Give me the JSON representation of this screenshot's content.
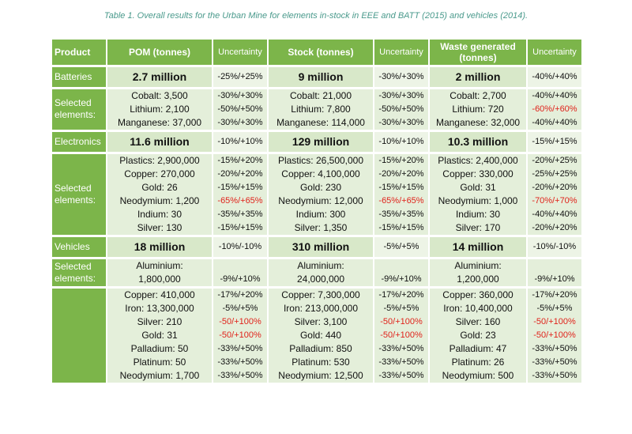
{
  "caption": "Table 1. Overall results for the Urban Mine for elements in-stock in EEE and BATT (2015) and vehicles (2014).",
  "headers": {
    "product": "Product",
    "pom": "POM (tonnes)",
    "uncertainty1": "Uncertainty",
    "stock": "Stock (tonnes)",
    "uncertainty2": "Uncertainty",
    "waste": "Waste generated (tonnes)",
    "uncertainty3": "Uncertainty"
  },
  "sections": [
    {
      "name": "Batteries",
      "pom": "2.7 million",
      "pom_unc": "-25%/+25%",
      "stock": "9 million",
      "stock_unc": "-30%/+30%",
      "waste": "2 million",
      "waste_unc": "-40%/+40%",
      "sel_label": "Selected elements:",
      "pom_items": [
        "Cobalt: 3,500",
        "Lithium: 2,100",
        "Manganese: 37,000"
      ],
      "pom_items_unc": [
        "-30%/+30%",
        "-50%/+50%",
        "-30%/+30%"
      ],
      "stock_items": [
        "Cobalt: 21,000",
        "Lithium: 7,800",
        "Manganese: 114,000"
      ],
      "stock_items_unc": [
        "-30%/+30%",
        "-50%/+50%",
        "-30%/+30%"
      ],
      "waste_items": [
        "Cobalt: 2,700",
        "Lithium: 720",
        "Manganese: 32,000"
      ],
      "waste_items_unc": [
        "-40%/+40%",
        "-60%/+60%",
        "-40%/+40%"
      ]
    },
    {
      "name": "Electronics",
      "pom": "11.6 million",
      "pom_unc": "-10%/+10%",
      "stock": "129 million",
      "stock_unc": "-10%/+10%",
      "waste": "10.3 million",
      "waste_unc": "-15%/+15%",
      "sel_label": "Selected elements:",
      "pom_items": [
        "Plastics: 2,900,000",
        "Copper: 270,000",
        "Gold: 26",
        "Neodymium: 1,200",
        "Indium: 30",
        "Silver: 130"
      ],
      "pom_items_unc": [
        "-15%/+20%",
        "-20%/+20%",
        "-15%/+15%",
        "-65%/+65%",
        "-35%/+35%",
        "-15%/+15%"
      ],
      "stock_items": [
        "Plastics: 26,500,000",
        "Copper: 4,100,000",
        "Gold: 230",
        "Neodymium: 12,000",
        "Indium: 300",
        "Silver: 1,350"
      ],
      "stock_items_unc": [
        "-15%/+20%",
        "-20%/+20%",
        "-15%/+15%",
        "-65%/+65%",
        "-35%/+35%",
        "-15%/+15%"
      ],
      "waste_items": [
        "Plastics: 2,400,000",
        "Copper: 330,000",
        "Gold: 31",
        "Neodymium: 1,000",
        "Indium: 30",
        "Silver: 170"
      ],
      "waste_items_unc": [
        "-20%/+25%",
        "-25%/+25%",
        "-20%/+20%",
        "-70%/+70%",
        "-40%/+40%",
        "-20%/+20%"
      ]
    },
    {
      "name": "Vehicles",
      "pom": "18 million",
      "pom_unc": "-10%/-10%",
      "stock": "310 million",
      "stock_unc": "-5%/+5%",
      "waste": "14 million",
      "waste_unc": "-10%/-10%",
      "sel_label": "Selected elements:",
      "alu": {
        "pom_label": "Aluminium:",
        "pom_value": "1,800,000",
        "pom_unc": "-9%/+10%",
        "stock_label": "Aluminium:",
        "stock_value": "24,000,000",
        "stock_unc": "-9%/+10%",
        "waste_label": "Aluminium:",
        "waste_value": "1,200,000",
        "waste_unc": "-9%/+10%"
      },
      "pom_items": [
        "Copper: 410,000",
        "Iron: 13,300,000",
        "Silver: 210",
        "Gold: 31",
        "Palladium: 50",
        "Platinum: 50",
        "Neodymium: 1,700"
      ],
      "pom_items_unc": [
        "-17%/+20%",
        "-5%/+5%",
        "-50/+100%",
        "-50/+100%",
        "-33%/+50%",
        "-33%/+50%",
        "-33%/+50%"
      ],
      "stock_items": [
        "Copper: 7,300,000",
        "Iron: 213,000,000",
        "Silver: 3,100",
        "Gold: 440",
        "Palladium: 850",
        "Platinum: 530",
        "Neodymium: 12,500"
      ],
      "stock_items_unc": [
        "-17%/+20%",
        "-5%/+5%",
        "-50/+100%",
        "-50/+100%",
        "-33%/+50%",
        "-33%/+50%",
        "-33%/+50%"
      ],
      "waste_items": [
        "Copper: 360,000",
        "Iron: 10,400,000",
        "Silver: 160",
        "Gold: 23",
        "Palladium: 47",
        "Platinum: 26",
        "Neodymium: 500"
      ],
      "waste_items_unc": [
        "-17%/+20%",
        "-5%/+5%",
        "-50/+100%",
        "-50/+100%",
        "-33%/+50%",
        "-33%/+50%",
        "-33%/+50%"
      ]
    }
  ],
  "colors": {
    "header_green": "#7cb54a",
    "cell_light": "#e4efda",
    "caption_teal": "#4a9a8c",
    "highlight_red": "#e0231b"
  }
}
